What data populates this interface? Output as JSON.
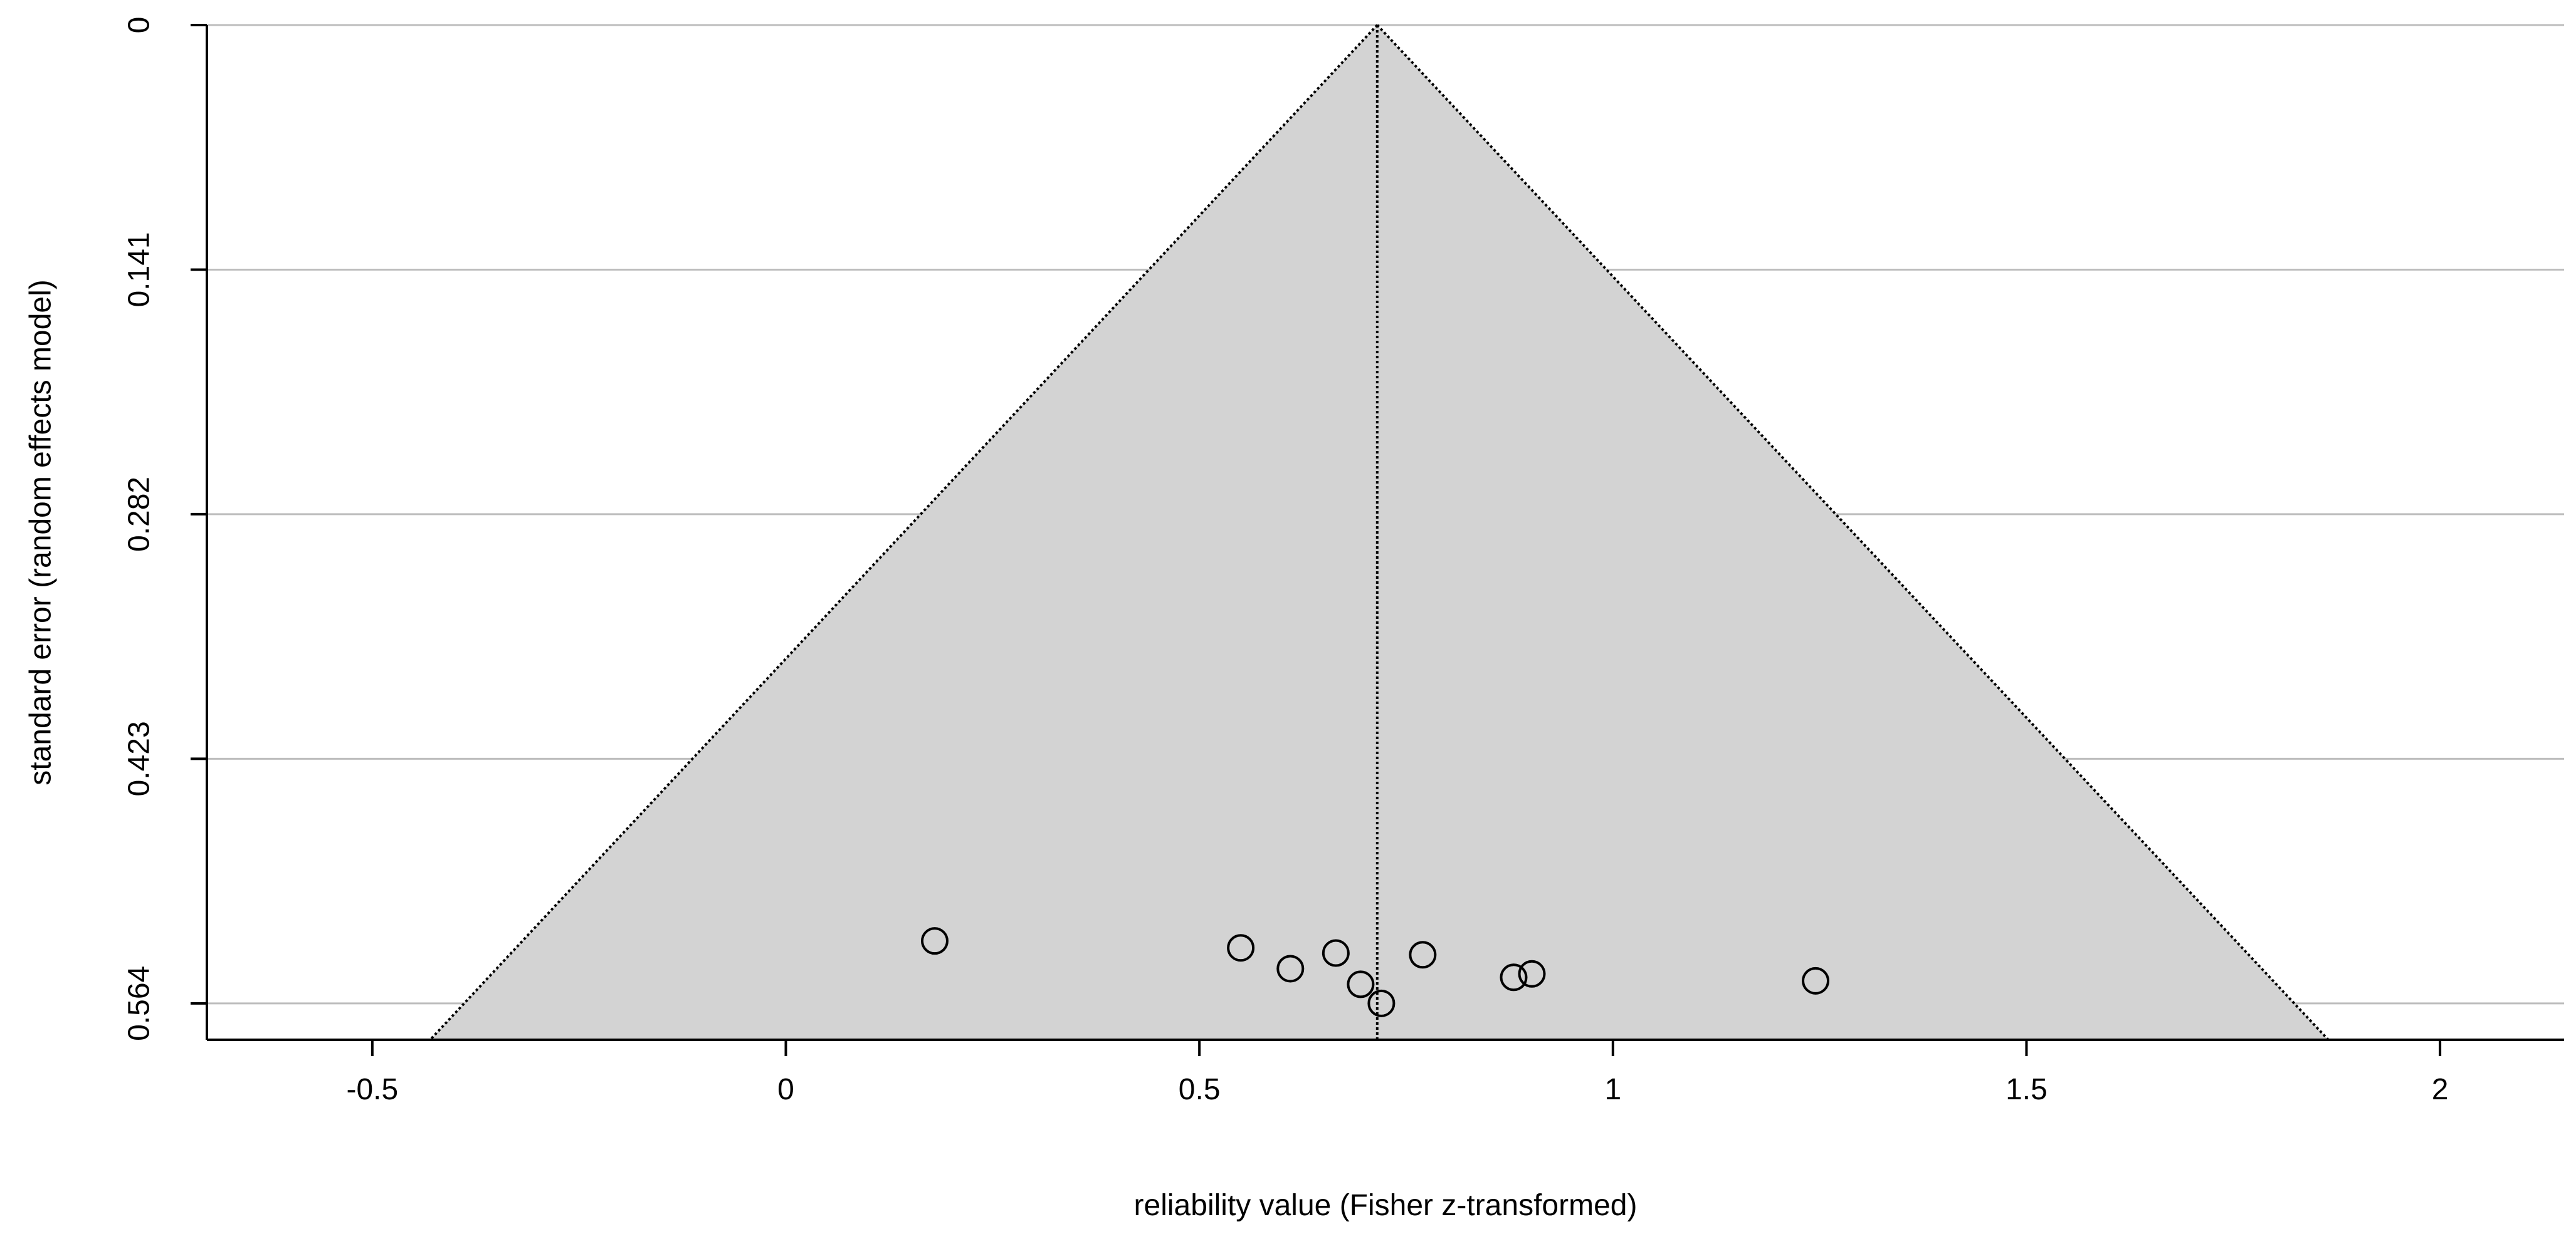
{
  "chart_data": {
    "type": "scatter",
    "subtype": "funnel-plot",
    "xlabel": "reliability value (Fisher z-transformed)",
    "ylabel": "standard error (random effects model)",
    "xlim": [
      -0.7,
      2.15
    ],
    "ylim": [
      0.585,
      0
    ],
    "y_axis_reversed": true,
    "x_ticks": [
      -0.5,
      0,
      0.5,
      1,
      1.5,
      2
    ],
    "x_tick_labels": [
      "-0.5",
      "0",
      "0.5",
      "1",
      "1.5",
      "2"
    ],
    "y_ticks": [
      0,
      0.141,
      0.282,
      0.423,
      0.564
    ],
    "y_tick_labels": [
      "0",
      "0.141",
      "0.282",
      "0.423",
      "0.564"
    ],
    "horizontal_grid": true,
    "funnel": {
      "center": 0.715,
      "apex_se": 0,
      "base_se": 0.585,
      "left_base_x": -0.43,
      "right_base_x": 1.865,
      "fill": "#d3d3d3"
    },
    "points": [
      {
        "x": 0.18,
        "y": 0.528
      },
      {
        "x": 0.55,
        "y": 0.532
      },
      {
        "x": 0.61,
        "y": 0.544
      },
      {
        "x": 0.665,
        "y": 0.535
      },
      {
        "x": 0.695,
        "y": 0.553
      },
      {
        "x": 0.72,
        "y": 0.564
      },
      {
        "x": 0.77,
        "y": 0.536
      },
      {
        "x": 0.88,
        "y": 0.549
      },
      {
        "x": 0.902,
        "y": 0.547
      },
      {
        "x": 1.245,
        "y": 0.551
      }
    ]
  }
}
